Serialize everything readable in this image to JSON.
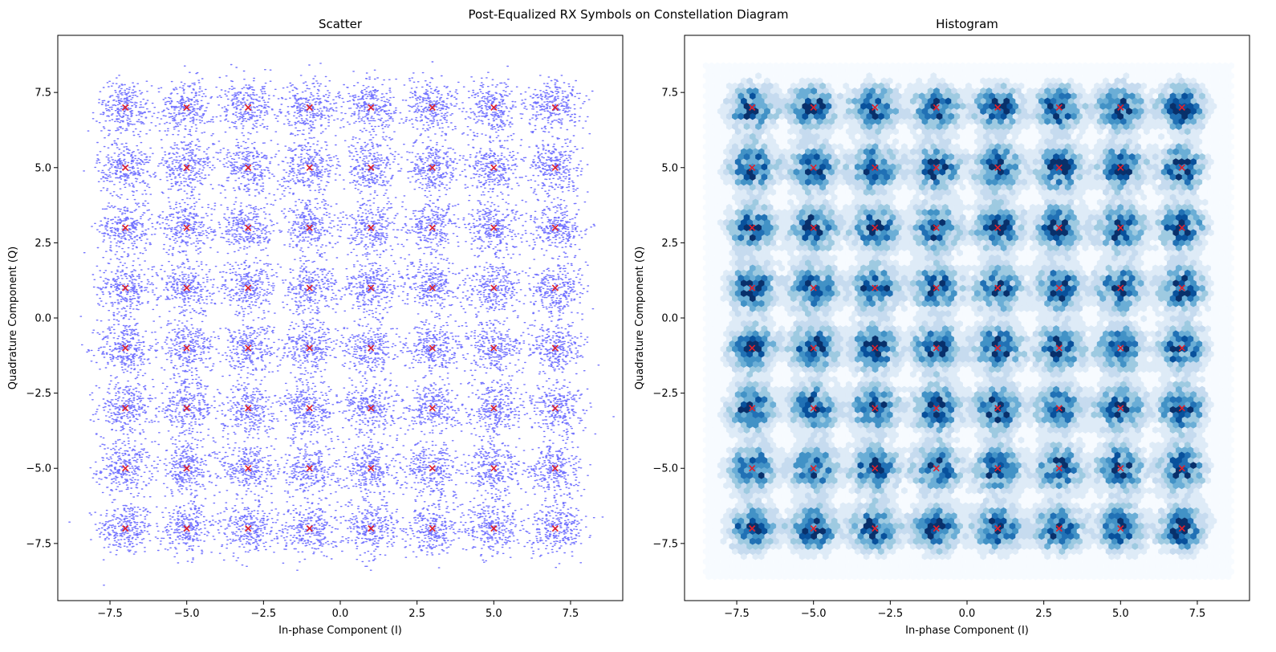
{
  "figure": {
    "suptitle": "Post-Equalized RX Symbols on Constellation Diagram"
  },
  "chart_data": [
    {
      "type": "scatter",
      "title": "Scatter",
      "xlabel": "In-phase Component (I)",
      "ylabel": "Quadrature Component (Q)",
      "xlim": [
        -9.2,
        9.2
      ],
      "ylim": [
        -9.4,
        9.4
      ],
      "xticks": [
        -7.5,
        -5.0,
        -2.5,
        0.0,
        2.5,
        5.0,
        7.5
      ],
      "xtick_labels": [
        "−7.5",
        "−5.0",
        "−2.5",
        "0.0",
        "2.5",
        "5.0",
        "7.5"
      ],
      "yticks": [
        -7.5,
        -5.0,
        -2.5,
        0.0,
        2.5,
        5.0,
        7.5
      ],
      "ytick_labels": [
        "−7.5",
        "−5.0",
        "−2.5",
        "0.0",
        "2.5",
        "5.0",
        "7.5"
      ],
      "constellation_levels": [
        -7,
        -5,
        -3,
        -1,
        1,
        3,
        5,
        7
      ],
      "noise_std": 0.45,
      "points_per_symbol": 280,
      "point_color": "#0000ff",
      "marker_color": "#e0202a",
      "marker": "x",
      "grid": false
    },
    {
      "type": "heatmap",
      "subtype": "hexbin",
      "title": "Histogram",
      "xlabel": "In-phase Component (I)",
      "ylabel": "Quadrature Component (Q)",
      "xlim": [
        -9.2,
        9.2
      ],
      "ylim": [
        -9.4,
        9.4
      ],
      "extent_x": [
        -8.6,
        8.7
      ],
      "extent_y": [
        -8.7,
        8.5
      ],
      "xticks": [
        -7.5,
        -5.0,
        -2.5,
        0.0,
        2.5,
        5.0,
        7.5
      ],
      "xtick_labels": [
        "−7.5",
        "−5.0",
        "−2.5",
        "0.0",
        "2.5",
        "5.0",
        "7.5"
      ],
      "yticks": [
        -7.5,
        -5.0,
        -2.5,
        0.0,
        2.5,
        5.0,
        7.5
      ],
      "ytick_labels": [
        "−7.5",
        "−5.0",
        "−2.5",
        "0.0",
        "2.5",
        "5.0",
        "7.5"
      ],
      "constellation_levels": [
        -7,
        -5,
        -3,
        -1,
        1,
        3,
        5,
        7
      ],
      "colormap": "Blues",
      "colormap_stops": [
        "#f7fbff",
        "#deebf7",
        "#c6dbef",
        "#9ecae1",
        "#6baed6",
        "#4292c6",
        "#2171b5",
        "#08519c",
        "#08306b"
      ],
      "marker_color": "#e0202a",
      "marker": "x",
      "grid": false
    }
  ]
}
